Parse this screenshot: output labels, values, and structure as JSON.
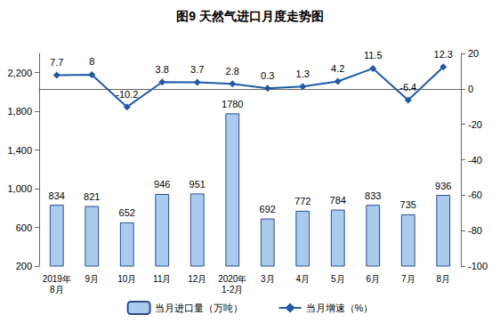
{
  "chart_data": {
    "type": "bar",
    "title": "图9 天然气进口月度走势图",
    "categories": [
      "2019年\n8月",
      "9月",
      "10月",
      "11月",
      "12月",
      "2020年\n1-2月",
      "3月",
      "4月",
      "5月",
      "6月",
      "7月",
      "8月"
    ],
    "series": [
      {
        "name": "当月进口量（万吨）",
        "type": "bar",
        "color": "#a9cbee",
        "values": [
          834,
          821,
          652,
          946,
          951,
          1780,
          692,
          772,
          784,
          833,
          735,
          936
        ]
      },
      {
        "name": "当月增速（%）",
        "type": "line",
        "axis": "y2",
        "color": "#1f5aa6",
        "marker": "diamond",
        "values": [
          7.7,
          8.0,
          -10.2,
          3.8,
          3.7,
          2.8,
          0.3,
          1.3,
          4.2,
          11.5,
          -6.4,
          12.3
        ]
      }
    ],
    "ylim": [
      200,
      2400
    ],
    "yticks": [
      200,
      600,
      1000,
      1400,
      1800,
      2200
    ],
    "y2lim": [
      -100,
      20
    ],
    "y2ticks": [
      -100,
      -80,
      -60,
      -40,
      -20,
      0,
      20
    ],
    "grid": false,
    "legend": "bottom",
    "data_labels": true
  }
}
